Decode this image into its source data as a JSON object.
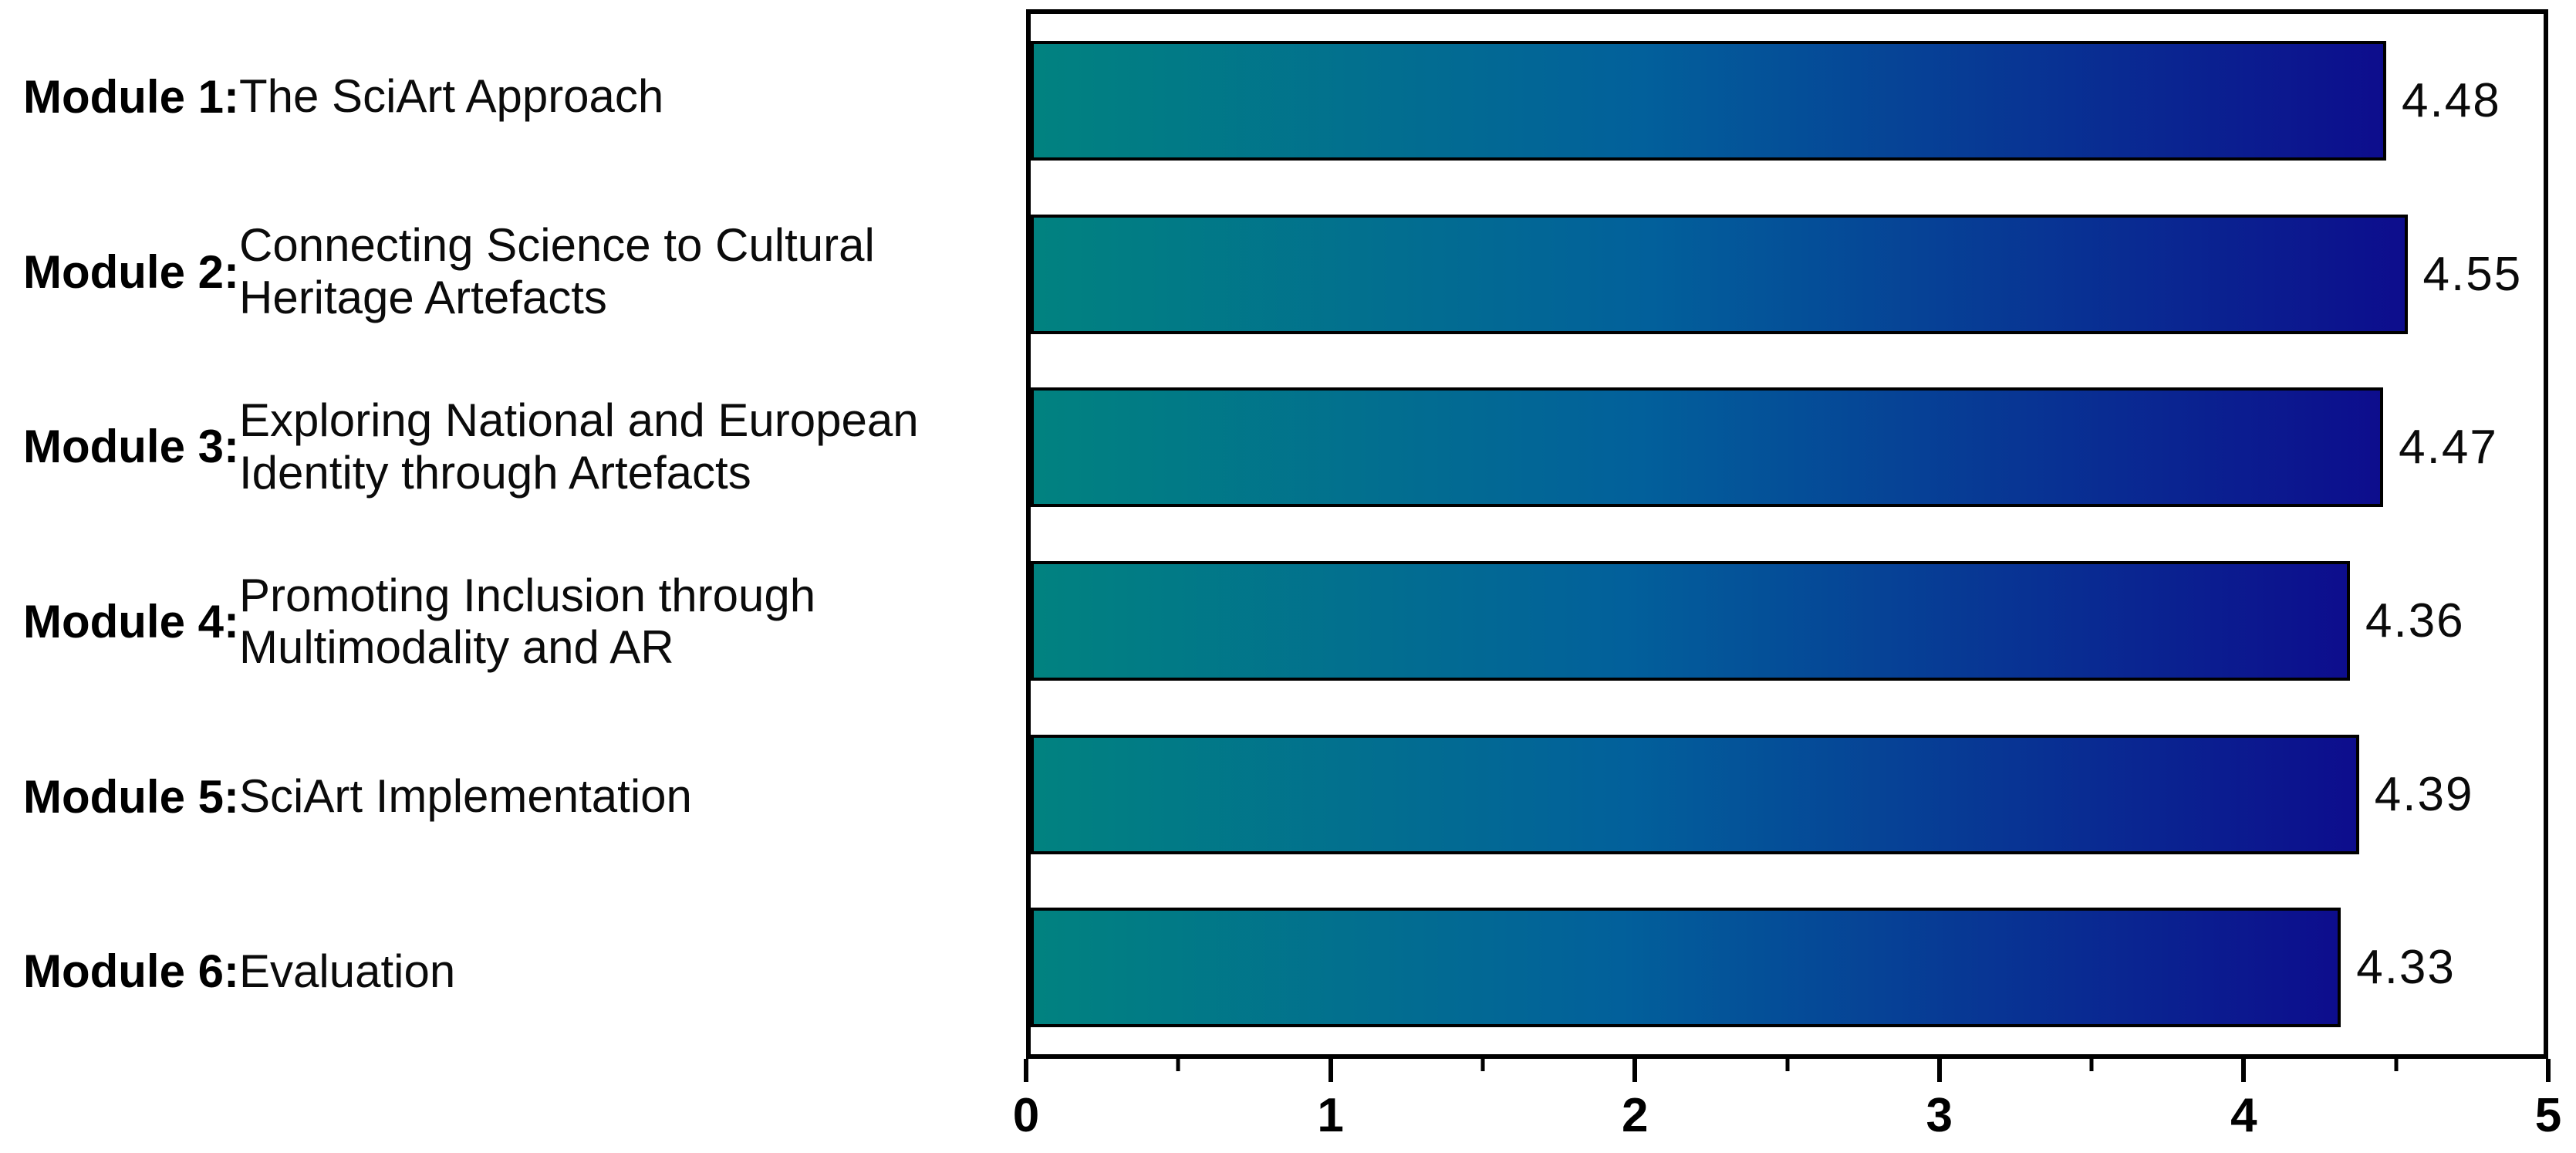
{
  "chart_data": {
    "type": "bar",
    "orientation": "horizontal",
    "title": "",
    "xlabel": "",
    "ylabel": "",
    "xlim": [
      0,
      5
    ],
    "x_major_ticks": [
      "0",
      "1",
      "2",
      "3",
      "4",
      "5"
    ],
    "x_minor_tick_step": 0.5,
    "grid": false,
    "legend": false,
    "categories": [
      {
        "tag": "Module 1:",
        "title": "The SciArt Approach"
      },
      {
        "tag": "Module 2:",
        "title": "Connecting Science to Cultural\nHeritage Artefacts"
      },
      {
        "tag": "Module 3:",
        "title": "Exploring National and European\nIdentity through Artefacts"
      },
      {
        "tag": "Module 4:",
        "title": "Promoting Inclusion through\nMultimodality and AR"
      },
      {
        "tag": "Module 5:",
        "title": "SciArt Implementation"
      },
      {
        "tag": "Module 6:",
        "title": "Evaluation"
      }
    ],
    "values": [
      4.48,
      4.55,
      4.47,
      4.36,
      4.39,
      4.33
    ],
    "value_labels": [
      "4.48",
      "4.55",
      "4.47",
      "4.36",
      "4.39",
      "4.33"
    ],
    "colors": {
      "bar_gradient_start": "#018280",
      "bar_gradient_mid": "#02609b",
      "bar_gradient_end": "#0d0d8d",
      "bar_border": "#000000",
      "axis": "#000000",
      "text": "#000000",
      "background": "#ffffff"
    }
  }
}
